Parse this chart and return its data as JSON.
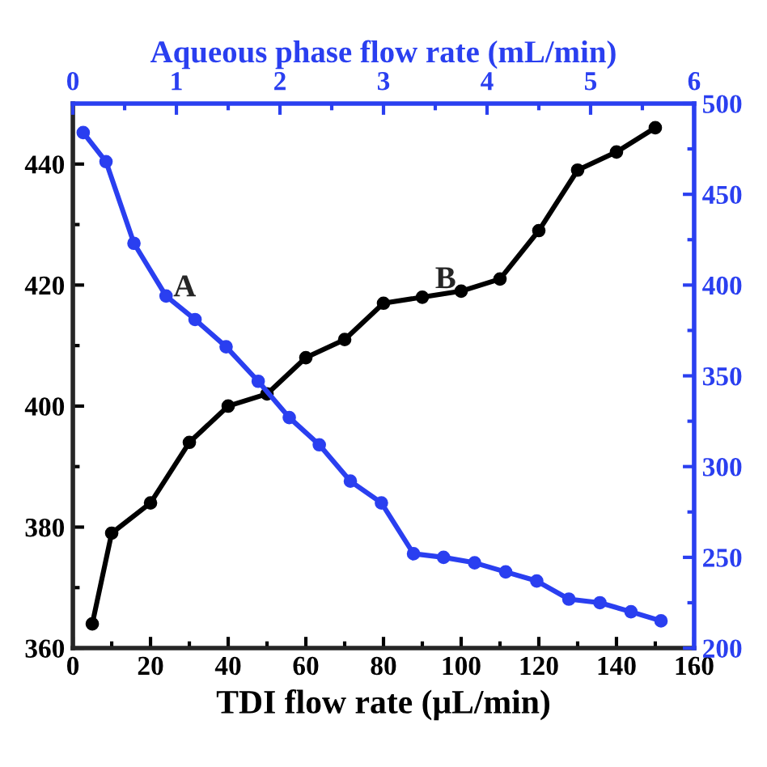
{
  "chart_data": [
    {
      "type": "line",
      "xlabel": "TDI flow rate (μL/min)",
      "xlim": [
        0,
        160
      ],
      "xticks": [
        0,
        20,
        40,
        60,
        80,
        100,
        120,
        140,
        160
      ],
      "ylim": [
        360,
        450
      ],
      "yticks": [
        360,
        380,
        400,
        420,
        440
      ],
      "marker": "circle",
      "series": [
        {
          "color": "#000000",
          "x": [
            5,
            10,
            20,
            30,
            40,
            50,
            60,
            70,
            80,
            90,
            100,
            110,
            120,
            130,
            140,
            150
          ],
          "values": [
            364,
            379,
            384,
            394,
            400,
            402,
            408,
            411,
            417,
            418,
            419,
            421,
            429,
            439,
            442,
            446
          ]
        }
      ],
      "annotations": [
        "A",
        "B"
      ]
    },
    {
      "type": "line",
      "xlabel": "Aqueous phase flow rate (mL/min)",
      "xlim": [
        0,
        6
      ],
      "xticks": [
        0,
        1,
        2,
        3,
        4,
        5,
        6
      ],
      "ylim": [
        200,
        500
      ],
      "yticks": [
        200,
        250,
        300,
        350,
        400,
        450,
        500
      ],
      "marker": "circle",
      "series": [
        {
          "color": "#2a3ff0",
          "x": [
            0.1,
            0.32,
            0.59,
            0.9,
            1.18,
            1.48,
            1.79,
            2.09,
            2.38,
            2.68,
            2.98,
            3.29,
            3.58,
            3.88,
            4.18,
            4.48,
            4.79,
            5.09,
            5.39,
            5.68
          ],
          "values": [
            484,
            468,
            423,
            394,
            381,
            366,
            347,
            327,
            312,
            292,
            280,
            252,
            250,
            247,
            242,
            237,
            227,
            225,
            220,
            215
          ]
        }
      ]
    }
  ]
}
